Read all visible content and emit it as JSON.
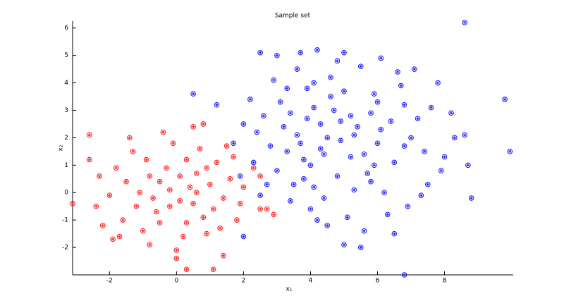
{
  "chart_data": {
    "type": "scatter",
    "title": "Sample set",
    "xlabel": "x₁",
    "ylabel": "x₂",
    "xlim": [
      -3.1,
      10.05
    ],
    "ylim": [
      -3,
      6.25
    ],
    "xticks": [
      -2,
      0,
      2,
      4,
      6,
      8
    ],
    "yticks": [
      -2,
      -1,
      0,
      1,
      2,
      3,
      4,
      5,
      6
    ],
    "series": [
      {
        "color": "#ff0000",
        "x": [
          -0.2,
          0.5,
          -0.8,
          1.0,
          -1.2,
          0.3,
          -0.5,
          0.8,
          -1.5,
          1.4,
          0.1,
          -0.3,
          0.6,
          -1.0,
          1.2,
          -0.7,
          0.2,
          -1.8,
          1.6,
          -0.1,
          0.9,
          -1.3,
          0.4,
          -0.6,
          1.1,
          -2.0,
          1.8,
          -0.9,
          0.7,
          -1.6,
          0.0,
          -0.4,
          1.5,
          -2.3,
          2.0,
          0.3,
          -1.1,
          0.6,
          -0.2,
          1.3,
          -1.7,
          0.5,
          -0.8,
          1.9,
          -2.4,
          0.1,
          -0.5,
          0.9,
          -1.4,
          1.7,
          -3.1,
          -2.6,
          -2.2,
          0.3,
          1.1,
          2.9,
          2.5,
          2.7,
          0.8,
          2.5,
          2.3,
          -2.6,
          -1.9,
          0.0,
          1.4
        ],
        "values": [
          0.1,
          -0.4,
          0.6,
          0.3,
          -0.5,
          1.2,
          -1.1,
          -0.9,
          0.4,
          -0.2,
          -0.3,
          0.9,
          0.7,
          -1.4,
          1.1,
          -0.2,
          -1.6,
          0.9,
          0.5,
          1.8,
          -1.5,
          1.5,
          0.2,
          -0.7,
          -0.6,
          -0.1,
          -1.0,
          1.2,
          1.6,
          -1.0,
          -2.1,
          2.2,
          1.7,
          0.6,
          0.2,
          -1.1,
          0.0,
          0.0,
          -0.5,
          -1.3,
          -1.6,
          2.4,
          -1.9,
          -0.4,
          -0.5,
          0.6,
          0.4,
          0.9,
          2.0,
          1.3,
          -0.4,
          2.1,
          -1.2,
          -2.8,
          -2.8,
          -0.8,
          -0.6,
          -0.6,
          2.5,
          0.6,
          0.9,
          1.2,
          -1.7,
          -2.4,
          -2.3
        ]
      },
      {
        "color": "#0000ff",
        "x": [
          4.5,
          3.8,
          5.2,
          4.1,
          5.6,
          3.2,
          4.8,
          6.1,
          3.5,
          5.0,
          4.3,
          5.8,
          2.8,
          4.6,
          6.5,
          3.9,
          5.3,
          4.0,
          6.8,
          3.3,
          5.5,
          4.2,
          2.6,
          6.2,
          7.0,
          3.0,
          4.9,
          5.9,
          3.6,
          4.4,
          6.6,
          2.3,
          5.1,
          7.4,
          3.4,
          4.7,
          5.7,
          6.0,
          3.1,
          4.1,
          7.6,
          2.4,
          5.4,
          6.9,
          4.5,
          3.7,
          5.0,
          2.9,
          6.4,
          4.3,
          7.9,
          3.3,
          5.6,
          6.7,
          4.8,
          3.9,
          5.2,
          2.7,
          7.2,
          4.0,
          6.3,
          5.9,
          3.6,
          4.6,
          7.8,
          2.2,
          5.3,
          6.1,
          3.8,
          4.4,
          8.2,
          8.0,
          7.5,
          2.5,
          6.5,
          5.0,
          4.2,
          3.0,
          3.7,
          5.5,
          7.1,
          6.8,
          4.9,
          3.4,
          5.8,
          4.1,
          6.0,
          2.0,
          8.3,
          7.3,
          8.6,
          6.8,
          9.8,
          9.95,
          8.8,
          0.5,
          1.2,
          2.0,
          2.5,
          8.7,
          8.6,
          1.7,
          1.9
        ],
        "values": [
          2.0,
          1.2,
          2.8,
          3.1,
          1.4,
          2.4,
          0.6,
          2.3,
          0.3,
          3.7,
          1.6,
          2.9,
          1.7,
          4.2,
          1.1,
          2.7,
          0.1,
          -0.6,
          3.2,
          3.8,
          4.6,
          5.2,
          2.8,
          0.0,
          2.0,
          0.8,
          1.9,
          3.6,
          4.5,
          -0.2,
          4.4,
          1.1,
          -0.9,
          1.5,
          -0.3,
          3.0,
          0.7,
          1.8,
          3.3,
          0.2,
          3.1,
          2.2,
          2.4,
          -0.5,
          -1.2,
          1.8,
          5.1,
          4.1,
          2.6,
          2.5,
          0.8,
          1.5,
          -1.4,
          3.9,
          4.8,
          3.8,
          1.3,
          0.3,
          2.7,
          1.0,
          -0.8,
          1.0,
          2.1,
          3.5,
          4.0,
          3.4,
          2.1,
          4.9,
          0.5,
          1.4,
          2.9,
          1.3,
          0.3,
          -0.1,
          -1.5,
          -1.9,
          -1.0,
          5.0,
          5.1,
          -2.0,
          4.5,
          1.7,
          2.6,
          2.9,
          0.4,
          4.0,
          3.3,
          2.5,
          2.0,
          -0.1,
          6.2,
          -3.0,
          3.4,
          1.5,
          -0.2,
          3.6,
          3.2,
          -1.6,
          5.1,
          1.0,
          2.1,
          1.8,
          0.6
        ]
      }
    ]
  }
}
